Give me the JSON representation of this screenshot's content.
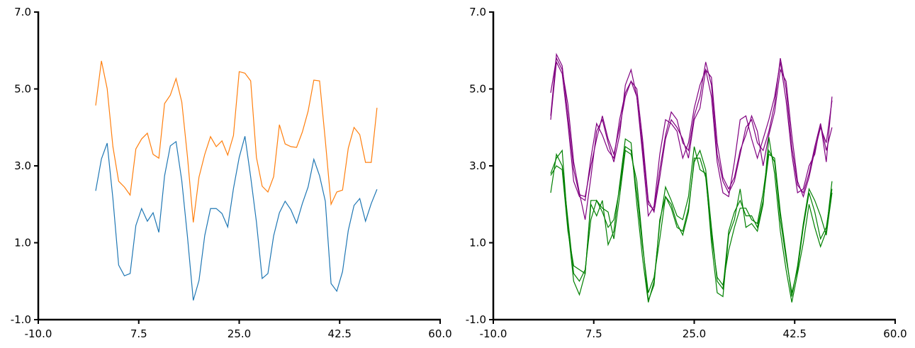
{
  "chart_data": [
    {
      "type": "line",
      "x": [
        0,
        1,
        2,
        3,
        4,
        5,
        6,
        7,
        8,
        9,
        10,
        11,
        12,
        13,
        14,
        15,
        16,
        17,
        18,
        19,
        20,
        21,
        22,
        23,
        24,
        25,
        26,
        27,
        28,
        29,
        30,
        31,
        32,
        33,
        34,
        35,
        36,
        37,
        38,
        39,
        40,
        41,
        42,
        43,
        44,
        45,
        46,
        47,
        48,
        49
      ],
      "series": [
        {
          "color": "#1f77b4",
          "values": [
            2.35,
            3.18,
            3.59,
            2.15,
            0.42,
            0.14,
            0.2,
            1.45,
            1.89,
            1.56,
            1.78,
            1.27,
            2.74,
            3.52,
            3.63,
            2.61,
            1.14,
            -0.5,
            0.02,
            1.19,
            1.89,
            1.89,
            1.76,
            1.41,
            2.41,
            3.22,
            3.77,
            2.71,
            1.54,
            0.07,
            0.2,
            1.18,
            1.78,
            2.08,
            1.86,
            1.51,
            2.02,
            2.45,
            3.17,
            2.74,
            2.08,
            -0.06,
            -0.26,
            0.25,
            1.32,
            1.97,
            2.15,
            1.56,
            2.02,
            2.39
          ]
        },
        {
          "color": "#ff7f0e",
          "values": [
            4.57,
            5.73,
            5.01,
            3.5,
            2.6,
            2.45,
            2.24,
            3.44,
            3.7,
            3.85,
            3.3,
            3.2,
            4.62,
            4.84,
            5.27,
            4.66,
            3.22,
            1.53,
            2.71,
            3.3,
            3.76,
            3.5,
            3.65,
            3.28,
            3.79,
            5.45,
            5.41,
            5.21,
            3.22,
            2.47,
            2.32,
            2.72,
            4.07,
            3.57,
            3.5,
            3.48,
            3.88,
            4.42,
            5.23,
            5.21,
            3.66,
            2.0,
            2.32,
            2.37,
            3.46,
            4.0,
            3.81,
            3.09,
            3.09,
            4.51
          ]
        }
      ],
      "xlim": [
        -10,
        60
      ],
      "ylim": [
        -1,
        7
      ],
      "xticks": [
        {
          "value": -10,
          "label": "-10.0"
        },
        7.5,
        {
          "value": 25,
          "label": "25.0"
        },
        42.5,
        {
          "value": 60,
          "label": "60.0"
        }
      ],
      "yticks": [
        {
          "value": -1,
          "label": "-1.0"
        },
        {
          "value": 1,
          "label": "1.0"
        },
        {
          "value": 3,
          "label": "3.0"
        },
        {
          "value": 5,
          "label": "5.0"
        },
        {
          "value": 7,
          "label": "7.0"
        }
      ]
    },
    {
      "type": "line",
      "x": [
        0,
        1,
        2,
        3,
        4,
        5,
        6,
        7,
        8,
        9,
        10,
        11,
        12,
        13,
        14,
        15,
        16,
        17,
        18,
        19,
        20,
        21,
        22,
        23,
        24,
        25,
        26,
        27,
        28,
        29,
        30,
        31,
        32,
        33,
        34,
        35,
        36,
        37,
        38,
        39,
        40,
        41,
        42,
        43,
        44,
        45,
        46,
        47,
        48,
        49
      ],
      "series": [
        {
          "color": "purple",
          "values": [
            4.3,
            5.9,
            5.6,
            4.3,
            2.9,
            2.25,
            2.2,
            3.0,
            3.7,
            4.3,
            3.7,
            3.3,
            4.0,
            4.8,
            5.2,
            4.8,
            3.5,
            2.0,
            1.85,
            2.9,
            3.8,
            4.4,
            4.2,
            3.6,
            3.4,
            4.3,
            4.8,
            5.7,
            5.1,
            3.3,
            2.6,
            2.3,
            2.6,
            3.3,
            4.0,
            4.2,
            3.6,
            3.4,
            3.9,
            4.6,
            5.8,
            5.0,
            3.5,
            2.5,
            2.3,
            2.8,
            3.5,
            4.1,
            3.4,
            4.0
          ]
        },
        {
          "color": "purple",
          "values": [
            4.9,
            5.8,
            5.5,
            4.6,
            3.1,
            2.3,
            1.6,
            2.7,
            3.9,
            4.2,
            3.6,
            3.1,
            3.8,
            5.1,
            5.5,
            4.8,
            3.3,
            1.7,
            1.95,
            3.3,
            4.2,
            4.1,
            3.9,
            3.2,
            3.6,
            4.5,
            5.1,
            5.5,
            4.8,
            3.1,
            2.3,
            2.2,
            3.1,
            4.2,
            4.3,
            3.7,
            3.2,
            3.7,
            4.2,
            4.8,
            5.7,
            4.7,
            3.3,
            2.3,
            2.4,
            3.0,
            3.3,
            4.1,
            3.1,
            4.8
          ]
        },
        {
          "color": "purple",
          "values": [
            4.2,
            5.7,
            5.4,
            4.1,
            2.6,
            2.2,
            2.1,
            3.2,
            4.1,
            3.8,
            3.4,
            3.2,
            4.2,
            4.9,
            5.2,
            5.0,
            3.7,
            2.1,
            1.8,
            2.7,
            3.7,
            4.2,
            4.0,
            3.7,
            3.2,
            4.2,
            4.5,
            5.5,
            5.3,
            3.6,
            2.7,
            2.4,
            2.7,
            3.4,
            3.8,
            4.3,
            3.9,
            3.0,
            3.8,
            4.4,
            5.5,
            5.2,
            3.8,
            2.6,
            2.2,
            2.7,
            3.4,
            4.0,
            3.6,
            4.7
          ]
        },
        {
          "color": "green",
          "values": [
            2.3,
            3.3,
            3.0,
            1.6,
            0.2,
            0.0,
            0.3,
            1.6,
            2.1,
            1.8,
            1.4,
            1.6,
            2.4,
            3.5,
            3.4,
            2.3,
            0.9,
            -0.3,
            0.1,
            1.1,
            2.2,
            2.0,
            1.5,
            1.2,
            1.8,
            3.2,
            3.2,
            2.7,
            1.2,
            0.1,
            -0.1,
            0.8,
            1.4,
            1.9,
            1.9,
            1.6,
            1.5,
            2.3,
            3.4,
            3.1,
            1.6,
            0.6,
            -0.3,
            0.3,
            1.4,
            2.3,
            1.8,
            1.1,
            1.4,
            2.4
          ]
        },
        {
          "color": "green",
          "values": [
            2.8,
            3.2,
            3.4,
            1.4,
            0.0,
            -0.35,
            0.2,
            2.0,
            1.7,
            2.1,
            0.95,
            1.3,
            2.5,
            3.7,
            3.6,
            2.0,
            0.6,
            -0.55,
            0.0,
            1.5,
            2.45,
            2.1,
            1.7,
            1.6,
            2.2,
            3.5,
            2.9,
            2.8,
            1.0,
            -0.3,
            -0.4,
            1.2,
            1.6,
            2.4,
            1.4,
            1.5,
            1.3,
            2.0,
            3.75,
            2.8,
            1.3,
            0.3,
            -0.55,
            0.2,
            1.0,
            2.0,
            1.4,
            0.9,
            1.3,
            2.6
          ]
        },
        {
          "color": "green",
          "values": [
            2.75,
            3.0,
            2.9,
            1.3,
            0.4,
            0.3,
            0.2,
            2.1,
            2.1,
            1.9,
            1.8,
            1.1,
            2.2,
            3.4,
            3.3,
            2.6,
            1.0,
            -0.5,
            -0.1,
            1.6,
            2.2,
            1.9,
            1.4,
            1.3,
            1.9,
            3.1,
            3.4,
            2.9,
            1.4,
            0.0,
            -0.2,
            1.3,
            1.8,
            2.1,
            1.7,
            1.7,
            1.4,
            2.1,
            3.3,
            3.2,
            1.8,
            0.7,
            -0.4,
            0.4,
            1.5,
            2.4,
            2.1,
            1.7,
            1.2,
            2.3
          ]
        }
      ],
      "xlim": [
        -10,
        60
      ],
      "ylim": [
        -1,
        7
      ],
      "xticks": [
        {
          "value": -10,
          "label": "-10.0"
        },
        7.5,
        {
          "value": 25,
          "label": "25.0"
        },
        42.5,
        {
          "value": 60,
          "label": "60.0"
        }
      ],
      "yticks": [
        {
          "value": -1,
          "label": "-1.0"
        },
        {
          "value": 1,
          "label": "1.0"
        },
        {
          "value": 3,
          "label": "3.0"
        },
        {
          "value": 5,
          "label": "5.0"
        },
        {
          "value": 7,
          "label": "7.0"
        }
      ]
    }
  ]
}
